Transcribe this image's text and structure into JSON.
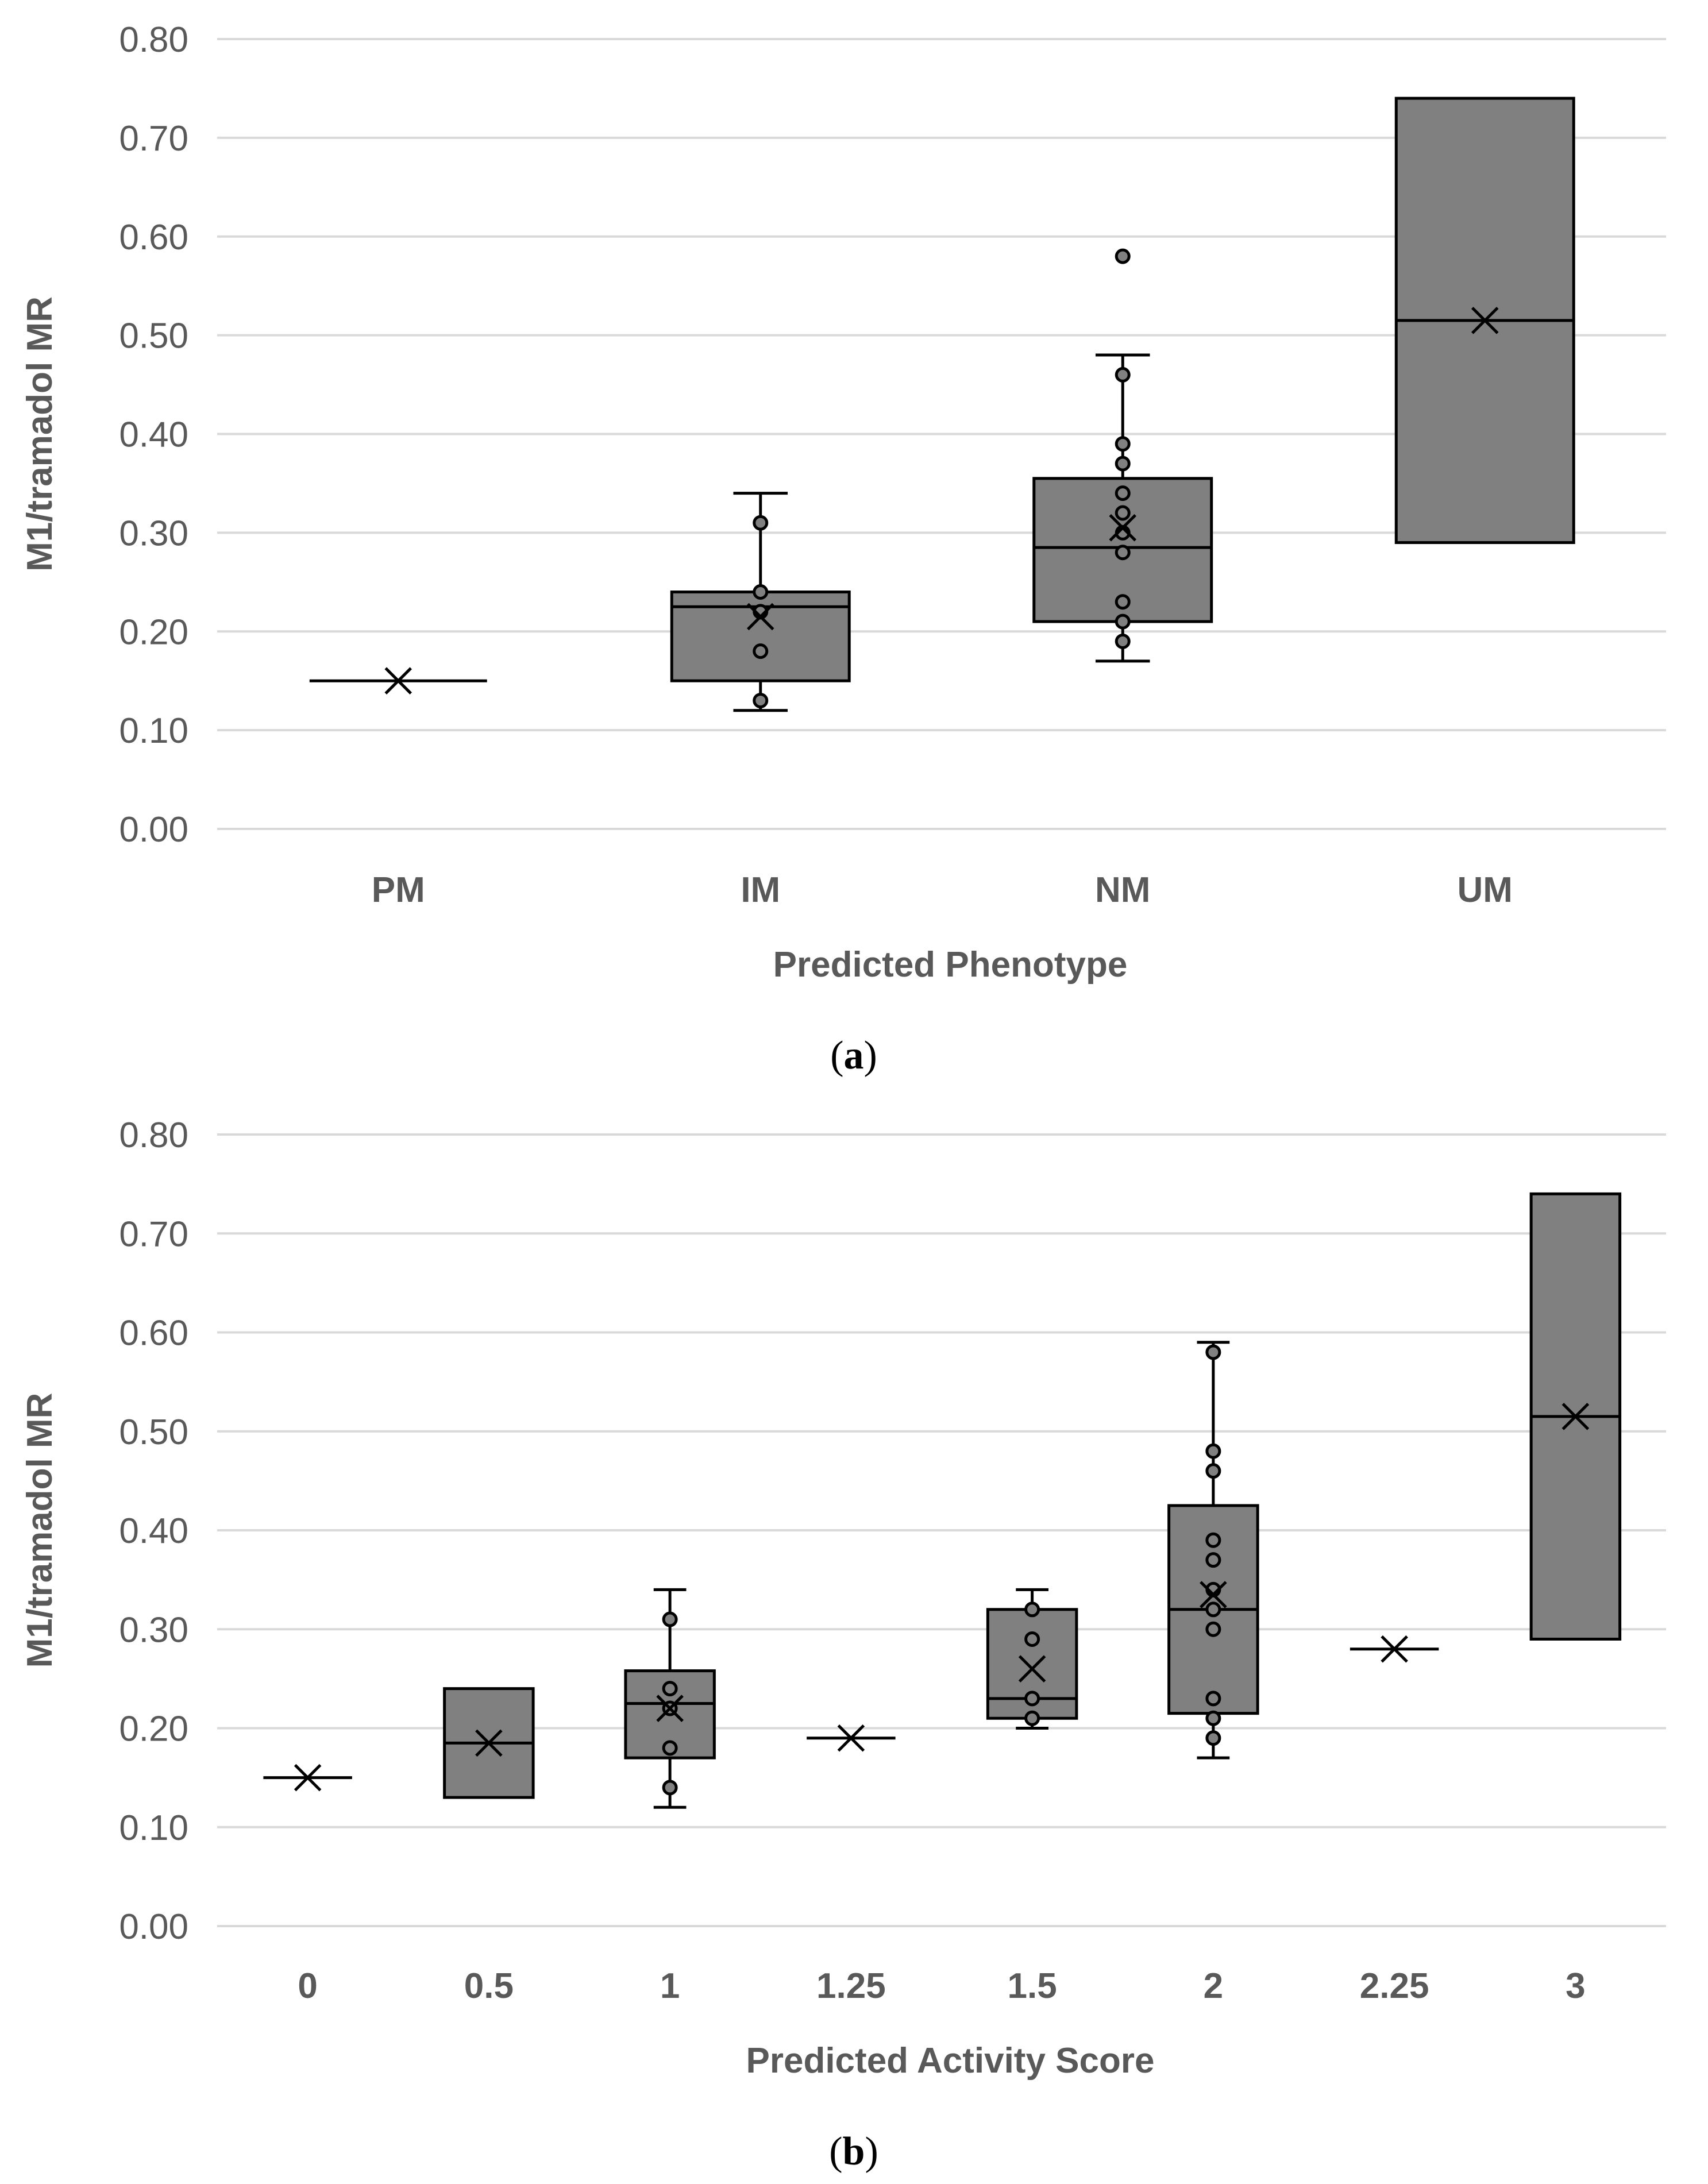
{
  "style": {
    "box_fill": "#808080",
    "point_fill": "#808080",
    "stroke": "#000000",
    "grid": "#d9d9d9",
    "text": "#595959"
  },
  "chart_data": [
    {
      "type": "box",
      "panel": "a",
      "caption": {
        "open": "(",
        "letter": "a",
        "close": ")"
      },
      "title": "",
      "xlabel": "Predicted Phenotype",
      "ylabel": "M1/tramadol MR",
      "ylim": [
        0,
        0.8
      ],
      "yticks": [
        "0.00",
        "0.10",
        "0.20",
        "0.30",
        "0.40",
        "0.50",
        "0.60",
        "0.70",
        "0.80"
      ],
      "grid": true,
      "categories": [
        "PM",
        "IM",
        "NM",
        "UM"
      ],
      "boxes": [
        {
          "category": "PM",
          "whisker_low": 0.15,
          "q1": 0.15,
          "median": 0.15,
          "q3": 0.15,
          "whisker_high": 0.15,
          "mean": 0.15,
          "points": []
        },
        {
          "category": "IM",
          "whisker_low": 0.12,
          "q1": 0.15,
          "median": 0.225,
          "q3": 0.24,
          "whisker_high": 0.34,
          "mean": 0.215,
          "points": [
            0.13,
            0.18,
            0.22,
            0.24,
            0.31
          ]
        },
        {
          "category": "NM",
          "whisker_low": 0.17,
          "q1": 0.21,
          "median": 0.285,
          "q3": 0.355,
          "whisker_high": 0.48,
          "mean": 0.305,
          "points": [
            0.19,
            0.21,
            0.23,
            0.28,
            0.3,
            0.32,
            0.34,
            0.37,
            0.39,
            0.46,
            0.58
          ]
        },
        {
          "category": "UM",
          "whisker_low": 0.29,
          "q1": 0.29,
          "median": 0.515,
          "q3": 0.74,
          "whisker_high": 0.74,
          "mean": 0.515,
          "points": []
        }
      ]
    },
    {
      "type": "box",
      "panel": "b",
      "caption": {
        "open": "(",
        "letter": "b",
        "close": ")"
      },
      "title": "",
      "xlabel": "Predicted Activity Score",
      "ylabel": "M1/tramadol MR",
      "ylim": [
        0,
        0.8
      ],
      "yticks": [
        "0.00",
        "0.10",
        "0.20",
        "0.30",
        "0.40",
        "0.50",
        "0.60",
        "0.70",
        "0.80"
      ],
      "grid": true,
      "categories": [
        "0",
        "0.5",
        "1",
        "1.25",
        "1.5",
        "2",
        "2.25",
        "3"
      ],
      "boxes": [
        {
          "category": "0",
          "whisker_low": 0.15,
          "q1": 0.15,
          "median": 0.15,
          "q3": 0.15,
          "whisker_high": 0.15,
          "mean": 0.15,
          "points": []
        },
        {
          "category": "0.5",
          "whisker_low": 0.13,
          "q1": 0.13,
          "median": 0.185,
          "q3": 0.24,
          "whisker_high": 0.24,
          "mean": 0.185,
          "points": []
        },
        {
          "category": "1",
          "whisker_low": 0.12,
          "q1": 0.17,
          "median": 0.225,
          "q3": 0.258,
          "whisker_high": 0.34,
          "mean": 0.22,
          "points": [
            0.14,
            0.18,
            0.22,
            0.24,
            0.31
          ]
        },
        {
          "category": "1.25",
          "whisker_low": 0.19,
          "q1": 0.19,
          "median": 0.19,
          "q3": 0.19,
          "whisker_high": 0.19,
          "mean": 0.19,
          "points": []
        },
        {
          "category": "1.5",
          "whisker_low": 0.2,
          "q1": 0.21,
          "median": 0.23,
          "q3": 0.32,
          "whisker_high": 0.34,
          "mean": 0.26,
          "points": [
            0.21,
            0.23,
            0.29,
            0.32
          ]
        },
        {
          "category": "2",
          "whisker_low": 0.17,
          "q1": 0.215,
          "median": 0.32,
          "q3": 0.425,
          "whisker_high": 0.59,
          "mean": 0.335,
          "points": [
            0.19,
            0.21,
            0.23,
            0.3,
            0.32,
            0.34,
            0.37,
            0.39,
            0.46,
            0.48,
            0.58
          ]
        },
        {
          "category": "2.25",
          "whisker_low": 0.28,
          "q1": 0.28,
          "median": 0.28,
          "q3": 0.28,
          "whisker_high": 0.28,
          "mean": 0.28,
          "points": []
        },
        {
          "category": "3",
          "whisker_low": 0.29,
          "q1": 0.29,
          "median": 0.515,
          "q3": 0.74,
          "whisker_high": 0.74,
          "mean": 0.515,
          "points": []
        }
      ]
    }
  ]
}
